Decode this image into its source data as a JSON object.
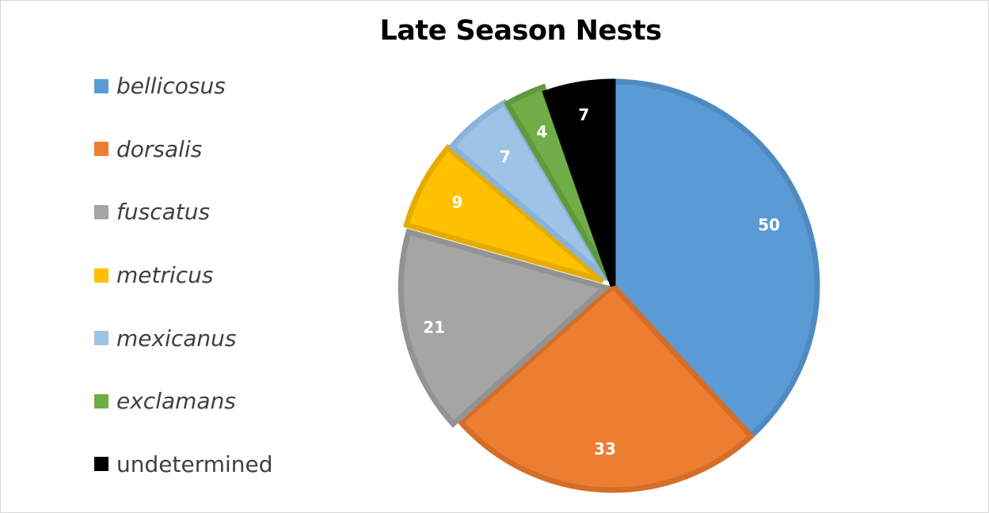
{
  "chart_data": {
    "type": "pie",
    "title": "Late Season Nests",
    "legend_position": "left",
    "categories": [
      "bellicosus",
      "dorsalis",
      "fuscatus",
      "metricus",
      "mexicanus",
      "exclamans",
      "undetermined"
    ],
    "values": [
      50,
      33,
      21,
      9,
      7,
      4,
      7
    ],
    "italic": [
      true,
      true,
      true,
      true,
      true,
      true,
      false
    ],
    "colors": [
      "#5B9BD5",
      "#ED7D31",
      "#A5A5A5",
      "#FFC000",
      "#9DC3E6",
      "#70AD47",
      "#000000"
    ],
    "edge_colors": [
      "#4F8BC2",
      "#D46E28",
      "#939393",
      "#E5AC00",
      "#8AB3D9",
      "#5E9A3A",
      "#000000"
    ],
    "data_labels": [
      "50",
      "33",
      "21",
      "9",
      "7",
      "4",
      "7"
    ]
  }
}
